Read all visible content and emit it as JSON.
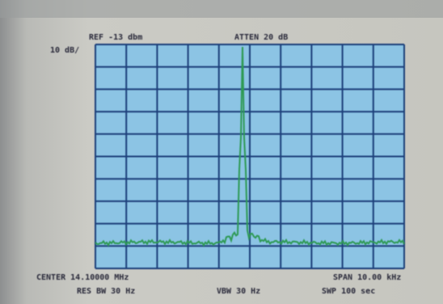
{
  "header": {
    "reference_level": "REF -13 dbm",
    "attenuation": "ATTEN 20 dB",
    "scale": "10 dB/"
  },
  "footer": {
    "center": "CENTER 14.10000 MHz",
    "resolution_bandwidth": "RES BW 30 Hz",
    "video_bandwidth": "VBW 30 Hz",
    "span": "SPAN 10.00 kHz",
    "sweep": "SWP 100 sec"
  }
}
